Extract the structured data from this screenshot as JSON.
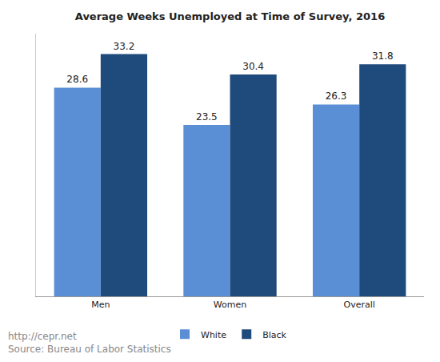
{
  "chart_data": {
    "type": "bar",
    "title": "Average Weeks Unemployed at Time of Survey, 2016",
    "categories": [
      "Men",
      "Women",
      "Overall"
    ],
    "series": [
      {
        "name": "White",
        "color": "#5a8fd6",
        "values": [
          28.6,
          23.5,
          26.3
        ]
      },
      {
        "name": "Black",
        "color": "#1f4a7c",
        "values": [
          33.2,
          30.4,
          31.8
        ]
      }
    ],
    "ylim": [
      0,
      36
    ],
    "grid": false,
    "legend": "bottom",
    "data_labels": true,
    "tick_labels": "x",
    "annotations": [
      "http://cepr.net",
      "Source: Bureau of Labor Statistics"
    ]
  }
}
